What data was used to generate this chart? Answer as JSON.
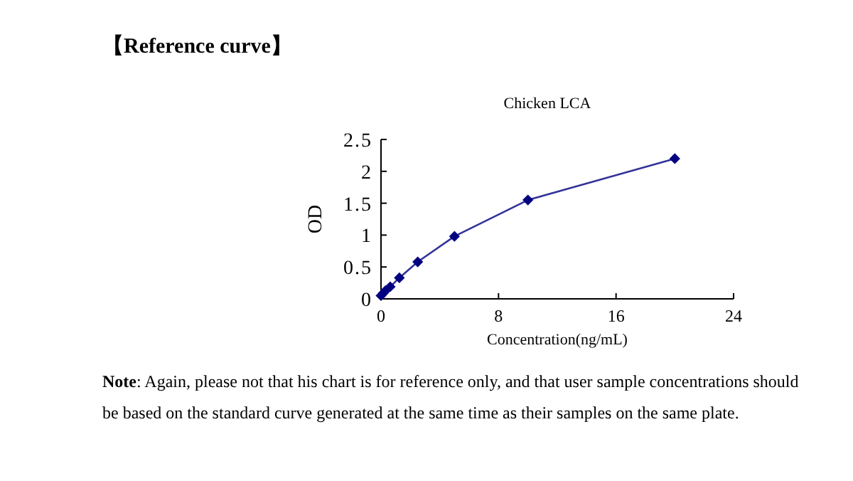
{
  "chart_data": {
    "type": "line",
    "title": "【Reference curve】",
    "subtitle": "Chicken LCA",
    "xlabel": "Concentration(ng/mL)",
    "ylabel": "OD",
    "x": [
      0,
      0.156,
      0.3125,
      0.625,
      1.25,
      2.5,
      5,
      10,
      20
    ],
    "series": [
      {
        "color": "#000080",
        "values": [
          0.05,
          0.09,
          0.13,
          0.19,
          0.33,
          0.58,
          0.98,
          1.55,
          2.2
        ]
      }
    ],
    "xlim": [
      0,
      24
    ],
    "xticks": [
      0,
      8,
      16,
      24
    ],
    "ylim": [
      0,
      2.5
    ],
    "yticks": [
      0,
      0.5,
      1,
      1.5,
      2,
      2.5
    ],
    "marker": "diamond",
    "line_style": "solid",
    "grid": false,
    "annotations": [
      "Note: Again, please not that his chart is for reference only, and that user sample concentrations should be based on the standard curve generated at the same time as their samples on the same plate."
    ]
  }
}
